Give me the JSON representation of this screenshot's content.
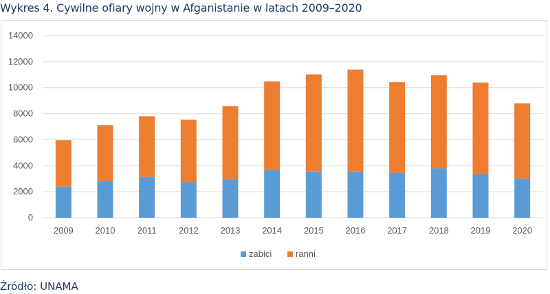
{
  "title": "Wykres 4. Cywilne ofiary wojny w Afganistanie w latach 2009–2020",
  "source": "Źródło: UNAMA",
  "chart_data": {
    "type": "bar",
    "stacked": true,
    "title": "Wykres 4. Cywilne ofiary wojny w Afganistanie w latach 2009–2020",
    "xlabel": "",
    "ylabel": "",
    "categories": [
      "2009",
      "2010",
      "2011",
      "2012",
      "2013",
      "2014",
      "2015",
      "2016",
      "2017",
      "2018",
      "2019",
      "2020"
    ],
    "series": [
      {
        "name": "zabici",
        "color": "#5b9bd5",
        "values": [
          2390,
          2810,
          3130,
          2740,
          2950,
          3690,
          3550,
          3550,
          3440,
          3800,
          3370,
          3020
        ]
      },
      {
        "name": "ranni",
        "color": "#ed7d31",
        "values": [
          3570,
          4310,
          4670,
          4800,
          5640,
          6800,
          7470,
          7840,
          7000,
          7170,
          7020,
          5780
        ]
      }
    ],
    "ylim": [
      0,
      14000
    ],
    "yticks": [
      "0",
      "2000",
      "4000",
      "6000",
      "8000",
      "10000",
      "12000",
      "14000"
    ],
    "grid": true,
    "legend": "bottom"
  }
}
